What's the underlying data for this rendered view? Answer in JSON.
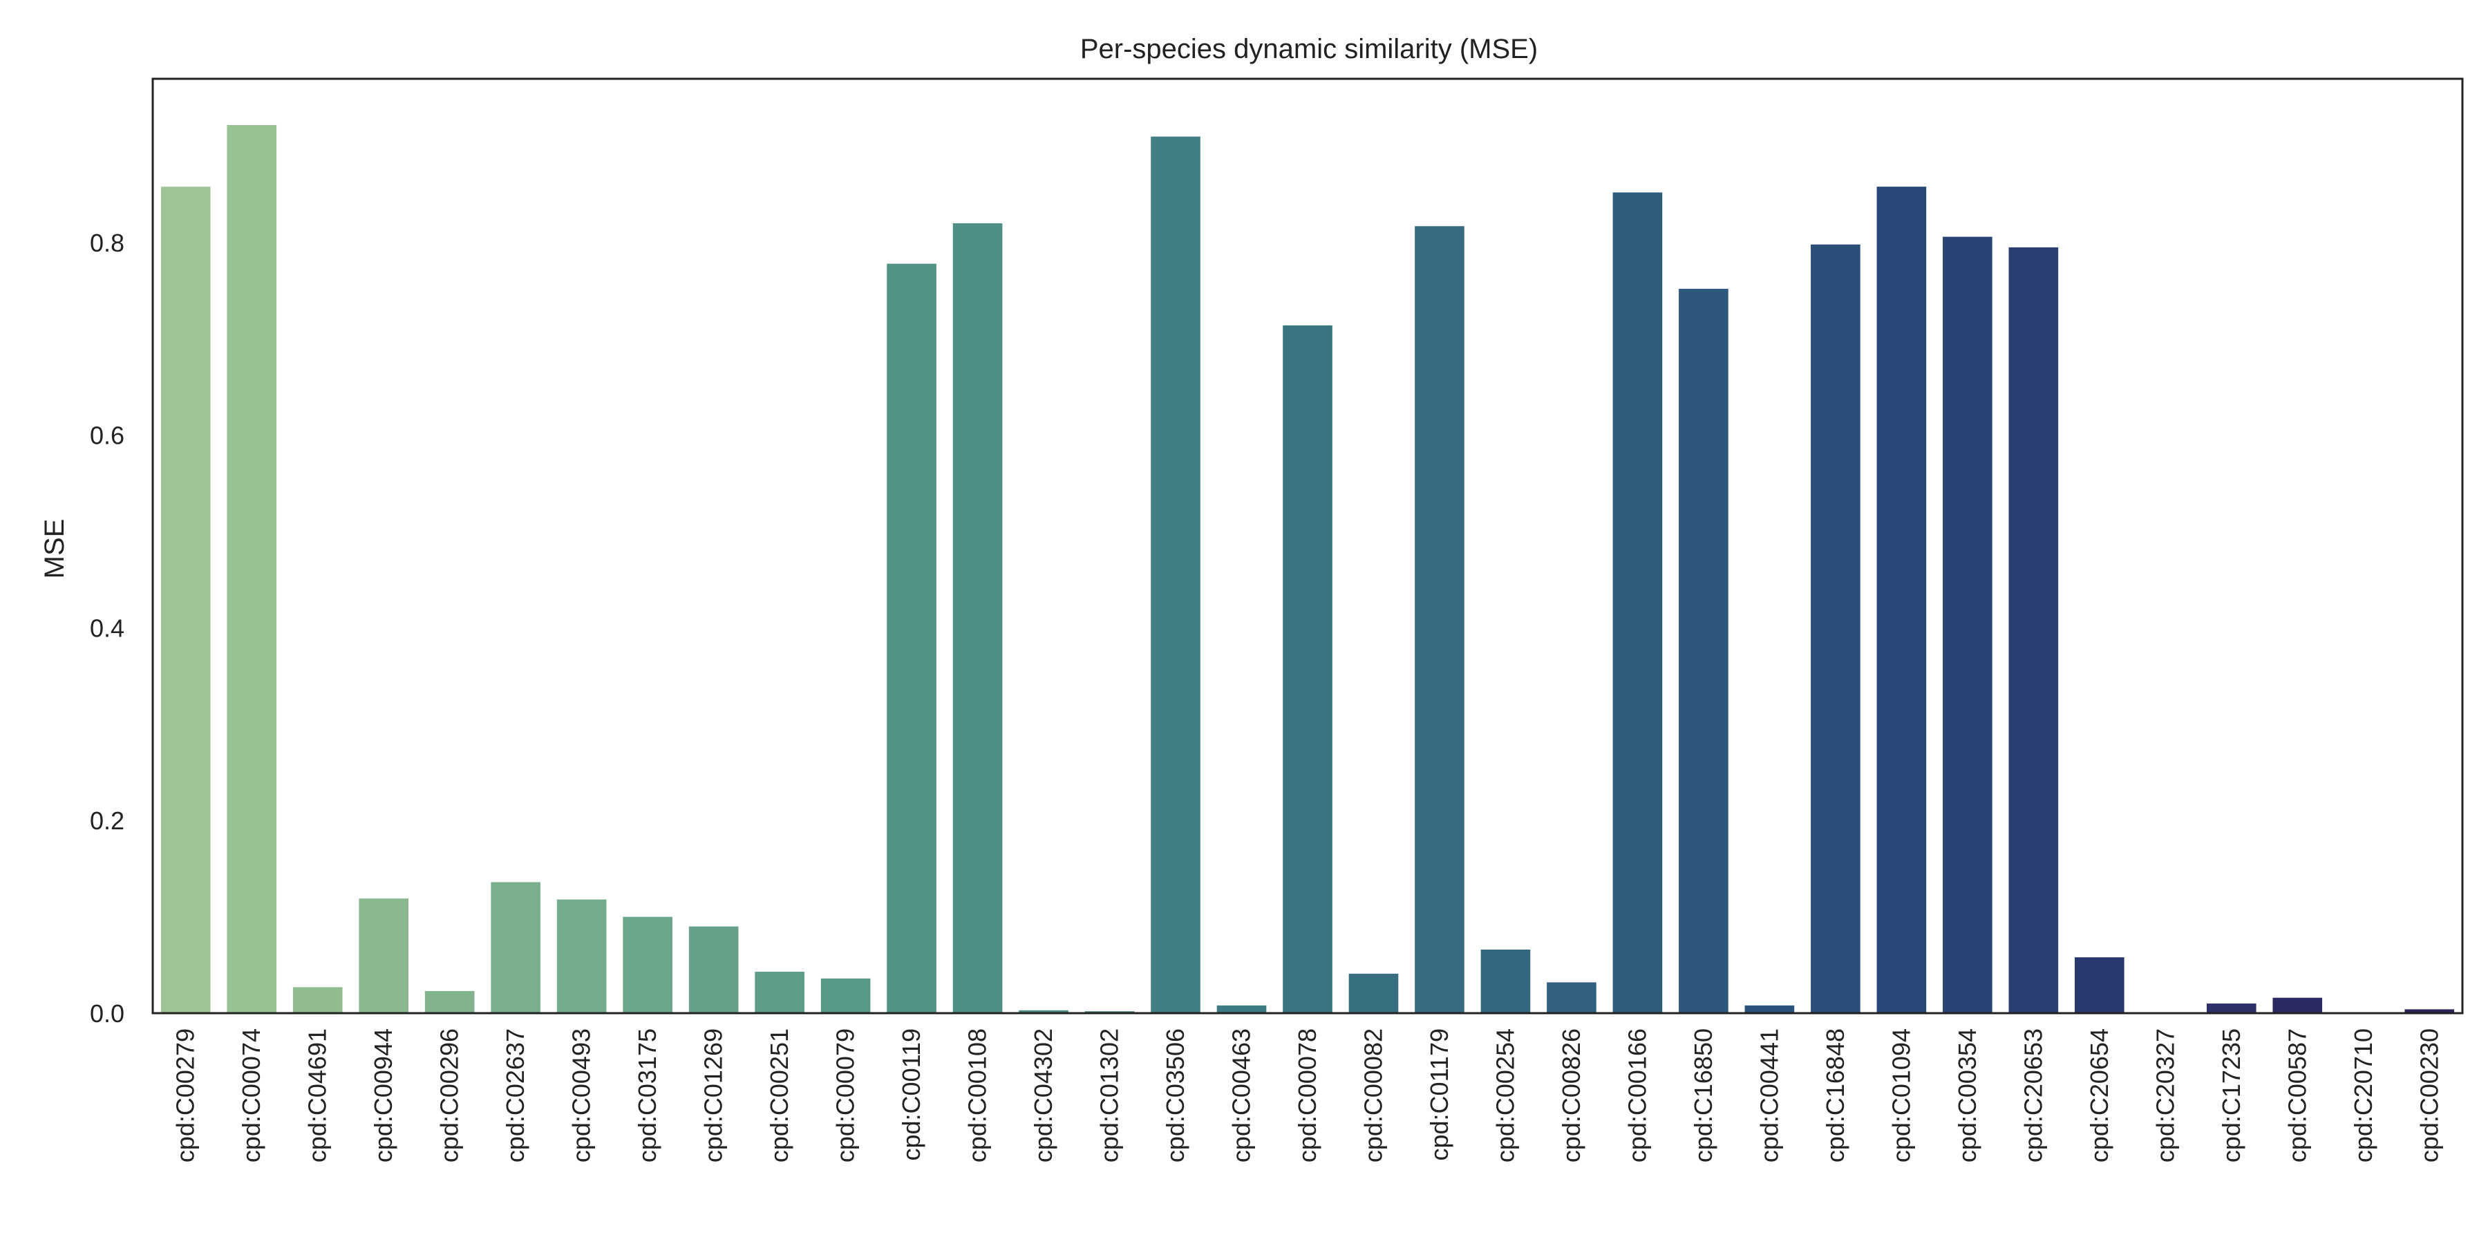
{
  "chart_data": {
    "type": "bar",
    "title": "Per-species dynamic similarity (MSE)",
    "xlabel": "",
    "ylabel": "MSE",
    "ylim": [
      0,
      0.97
    ],
    "yticks": [
      "0.0",
      "0.2",
      "0.4",
      "0.6",
      "0.8"
    ],
    "grid": false,
    "categories": [
      "cpd:C00279",
      "cpd:C00074",
      "cpd:C04691",
      "cpd:C00944",
      "cpd:C00296",
      "cpd:C02637",
      "cpd:C00493",
      "cpd:C03175",
      "cpd:C01269",
      "cpd:C00251",
      "cpd:C00079",
      "cpd:C00119",
      "cpd:C00108",
      "cpd:C04302",
      "cpd:C01302",
      "cpd:C03506",
      "cpd:C00463",
      "cpd:C00078",
      "cpd:C00082",
      "cpd:C01179",
      "cpd:C00254",
      "cpd:C00826",
      "cpd:C00166",
      "cpd:C16850",
      "cpd:C00441",
      "cpd:C16848",
      "cpd:C01094",
      "cpd:C00354",
      "cpd:C20653",
      "cpd:C20654",
      "cpd:C20327",
      "cpd:C17235",
      "cpd:C00587",
      "cpd:C20710",
      "cpd:C00230"
    ],
    "values": [
      0.858,
      0.922,
      0.027,
      0.119,
      0.023,
      0.136,
      0.118,
      0.1,
      0.09,
      0.043,
      0.036,
      0.778,
      0.82,
      0.003,
      0.002,
      0.91,
      0.008,
      0.714,
      0.041,
      0.817,
      0.066,
      0.032,
      0.852,
      0.752,
      0.008,
      0.798,
      0.858,
      0.806,
      0.795,
      0.058,
      0.001,
      0.01,
      0.016,
      0.001,
      0.004
    ],
    "colors": [
      "#a1c497",
      "#98c193",
      "#90bc90",
      "#89b88e",
      "#81b48d",
      "#7aaf8c",
      "#73ab8b",
      "#6ca68a",
      "#65a189",
      "#5e9c88",
      "#589887",
      "#539387",
      "#4d8e86",
      "#488986",
      "#448485",
      "#417f84",
      "#3e7a83",
      "#3b7582",
      "#387081",
      "#366b80",
      "#33667f",
      "#31617e",
      "#2f5c7d",
      "#2d577c",
      "#2b527b",
      "#2a4d79",
      "#294877",
      "#294374",
      "#293e71",
      "#29396e",
      "#2a346a",
      "#2a2f66",
      "#2a2a62",
      "#2a265d",
      "#2a2258"
    ]
  }
}
